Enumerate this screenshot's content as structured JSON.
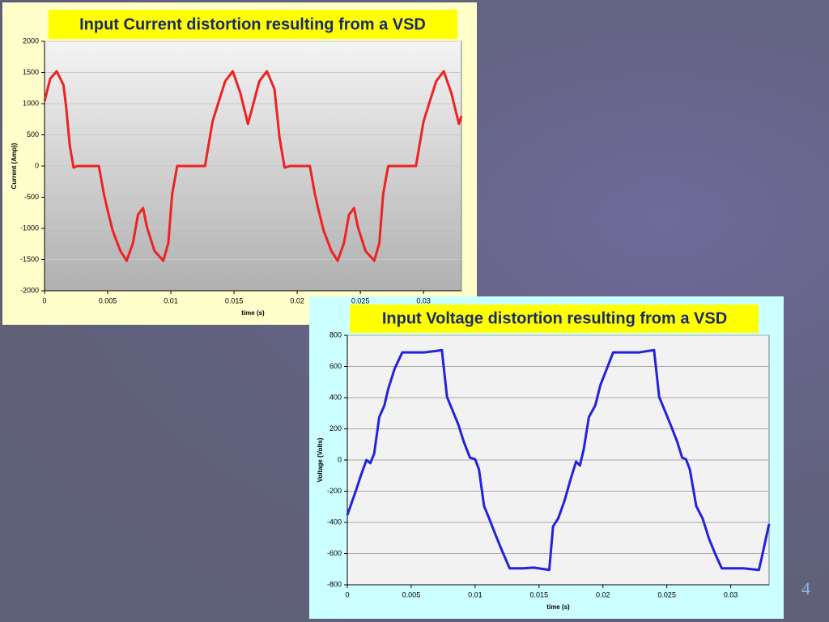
{
  "chart_data": [
    {
      "type": "line",
      "title": "Input Current distortion resulting from a VSD",
      "x_label": "time (s)",
      "y_label": "Current (Amp))",
      "xlim": [
        0,
        0.033
      ],
      "xticks": [
        0,
        0.005,
        0.01,
        0.015,
        0.02,
        0.025,
        0.03
      ],
      "ylim": [
        -2000,
        2000
      ],
      "yticks": [
        -2000,
        -1500,
        -1000,
        -500,
        0,
        500,
        1000,
        1500,
        2000
      ],
      "grid": true,
      "series": [
        {
          "name": "Current",
          "color": "#ee2222",
          "x": [
            0,
            0.00045,
            0.00096,
            0.0015,
            0.0017,
            0.002,
            0.0023,
            0.0026,
            0.0043,
            0.0047,
            0.005,
            0.0054,
            0.006,
            0.0065,
            0.007,
            0.0074,
            0.0078,
            0.0081,
            0.0087,
            0.0094,
            0.0098,
            0.0101,
            0.0105,
            0.0108,
            0.0127,
            0.0133,
            0.0138,
            0.0143,
            0.0149,
            0.0155,
            0.0161,
            0.0165,
            0.017,
            0.0176,
            0.0182,
            0.0186,
            0.019,
            0.0194,
            0.021,
            0.0214,
            0.0217,
            0.0221,
            0.0227,
            0.0232,
            0.0237,
            0.0241,
            0.0245,
            0.0248,
            0.0254,
            0.0261,
            0.0265,
            0.0268,
            0.0272,
            0.0275,
            0.0294,
            0.03,
            0.0305,
            0.031,
            0.0316,
            0.0322,
            0.0328,
            0.033
          ],
          "values": [
            1040,
            1400,
            1520,
            1300,
            970,
            325,
            -25,
            0,
            0,
            -450,
            -715,
            -1040,
            -1360,
            -1520,
            -1235,
            -780,
            -675,
            -975,
            -1360,
            -1520,
            -1235,
            -455,
            0,
            0,
            0,
            715,
            1040,
            1360,
            1520,
            1170,
            675,
            975,
            1360,
            1520,
            1235,
            455,
            -25,
            0,
            0,
            -450,
            -715,
            -1040,
            -1360,
            -1520,
            -1235,
            -780,
            -675,
            -975,
            -1360,
            -1520,
            -1235,
            -455,
            0,
            0,
            0,
            715,
            1040,
            1360,
            1520,
            1170,
            675,
            800
          ]
        }
      ]
    },
    {
      "type": "line",
      "title": "Input Voltage distortion resulting from a VSD",
      "x_label": "time (s)",
      "y_label": "Voltage (Volts)",
      "xlim": [
        0,
        0.033
      ],
      "xticks": [
        0,
        0.005,
        0.01,
        0.015,
        0.02,
        0.025,
        0.03
      ],
      "ylim": [
        -800,
        800
      ],
      "yticks": [
        -800,
        -600,
        -400,
        -200,
        0,
        200,
        400,
        600,
        800
      ],
      "grid": true,
      "series": [
        {
          "name": "Voltage",
          "color": "#2222dd",
          "x": [
            0,
            0.0007,
            0.0011,
            0.0015,
            0.0018,
            0.0021,
            0.0025,
            0.0029,
            0.0032,
            0.0037,
            0.0043,
            0.0051,
            0.006,
            0.007,
            0.0074,
            0.0078,
            0.0082,
            0.0087,
            0.0091,
            0.0096,
            0.01,
            0.0103,
            0.0107,
            0.0111,
            0.0116,
            0.0121,
            0.0127,
            0.0137,
            0.0146,
            0.0154,
            0.0158,
            0.0161,
            0.0165,
            0.017,
            0.0175,
            0.0179,
            0.0182,
            0.0185,
            0.0189,
            0.0194,
            0.0198,
            0.0203,
            0.0208,
            0.0228,
            0.024,
            0.0244,
            0.0248,
            0.0253,
            0.0258,
            0.0262,
            0.0265,
            0.0268,
            0.0273,
            0.0278,
            0.0283,
            0.0288,
            0.0293,
            0.031,
            0.0322,
            0.0324,
            0.033
          ],
          "values": [
            -353,
            -190,
            -90,
            0,
            -20,
            40,
            275,
            350,
            455,
            585,
            690,
            690,
            690,
            700,
            705,
            405,
            325,
            225,
            120,
            15,
            5,
            -60,
            -295,
            -375,
            -480,
            -580,
            -695,
            -695,
            -690,
            -700,
            -705,
            -425,
            -375,
            -260,
            -115,
            -10,
            -35,
            70,
            275,
            350,
            480,
            585,
            690,
            690,
            705,
            405,
            325,
            225,
            120,
            15,
            5,
            -60,
            -295,
            -375,
            -505,
            -605,
            -695,
            -695,
            -705,
            -635,
            -410
          ]
        }
      ]
    }
  ],
  "page_number": "4"
}
